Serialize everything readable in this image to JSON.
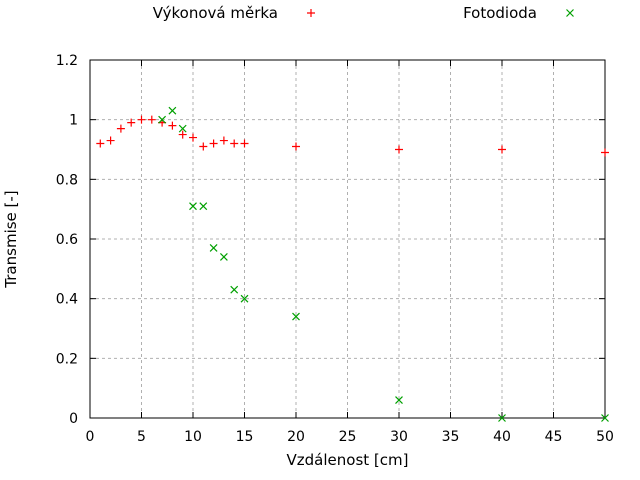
{
  "figure": {
    "background": "#ffffff",
    "text_color": "#000000",
    "grid_color": "#b0b0b0",
    "border_color": "#000000"
  },
  "chart_data": {
    "type": "scatter",
    "title": "",
    "xlabel": "Vzdálenost [cm]",
    "ylabel": "Transmise [-]",
    "xlim": [
      0,
      50
    ],
    "ylim": [
      0,
      1.2
    ],
    "grid": true,
    "legend_position": "top-center",
    "x_ticks": {
      "values": [
        0,
        5,
        10,
        15,
        20,
        25,
        30,
        35,
        40,
        45,
        50
      ],
      "labels": [
        "0",
        "5",
        "10",
        "15",
        "20",
        "25",
        "30",
        "35",
        "40",
        "45",
        "50"
      ]
    },
    "y_ticks": {
      "values": [
        0,
        0.2,
        0.4,
        0.6,
        0.8,
        1,
        1.2
      ],
      "labels": [
        "0",
        "0.2",
        "0.4",
        "0.6",
        "0.8",
        "1",
        "1.2"
      ]
    },
    "series": [
      {
        "name": "Výkonová měrka",
        "marker": "plus",
        "color": "#ff0000",
        "points": [
          [
            1,
            0.92
          ],
          [
            2,
            0.93
          ],
          [
            3,
            0.97
          ],
          [
            4,
            0.99
          ],
          [
            5,
            1.0
          ],
          [
            6,
            1.0
          ],
          [
            7,
            0.99
          ],
          [
            8,
            0.98
          ],
          [
            9,
            0.95
          ],
          [
            10,
            0.94
          ],
          [
            11,
            0.91
          ],
          [
            12,
            0.92
          ],
          [
            13,
            0.93
          ],
          [
            14,
            0.92
          ],
          [
            15,
            0.92
          ],
          [
            20,
            0.91
          ],
          [
            30,
            0.9
          ],
          [
            40,
            0.9
          ],
          [
            50,
            0.89
          ]
        ]
      },
      {
        "name": "Fotodioda",
        "marker": "cross",
        "color": "#00a000",
        "points": [
          [
            7,
            1.0
          ],
          [
            8,
            1.03
          ],
          [
            9,
            0.97
          ],
          [
            10,
            0.71
          ],
          [
            11,
            0.71
          ],
          [
            12,
            0.57
          ],
          [
            13,
            0.54
          ],
          [
            14,
            0.43
          ],
          [
            15,
            0.4
          ],
          [
            20,
            0.34
          ],
          [
            30,
            0.06
          ],
          [
            40,
            0.0
          ],
          [
            50,
            0.0
          ]
        ]
      }
    ]
  }
}
